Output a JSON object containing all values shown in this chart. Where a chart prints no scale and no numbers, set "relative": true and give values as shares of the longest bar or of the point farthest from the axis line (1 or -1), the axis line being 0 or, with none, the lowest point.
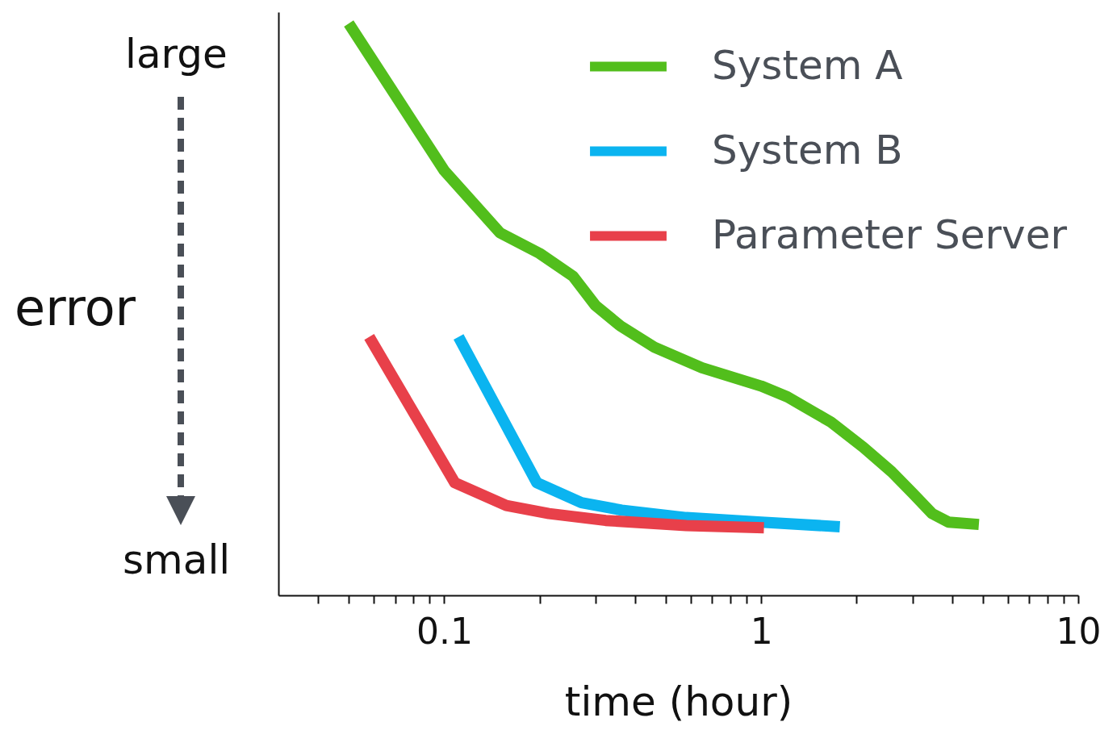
{
  "chart_data": {
    "type": "line",
    "relative": true,
    "ylabel": "error",
    "xlabel": "time (hour)",
    "annotations": [
      "large",
      "small"
    ],
    "log": "x",
    "grid": false,
    "legend": "top right",
    "line_style": "solid",
    "marker": "none",
    "xlim": [
      0.03,
      10
    ],
    "xticks": [
      {
        "value": 0.04,
        "label": null
      },
      {
        "value": 0.05,
        "label": null
      },
      {
        "value": 0.06,
        "label": null
      },
      {
        "value": 0.07,
        "label": null
      },
      {
        "value": 0.08,
        "label": null
      },
      {
        "value": 0.09,
        "label": null
      },
      0.1,
      {
        "value": 0.2,
        "label": null
      },
      {
        "value": 0.3,
        "label": null
      },
      {
        "value": 0.4,
        "label": null
      },
      {
        "value": 0.5,
        "label": null
      },
      {
        "value": 0.6,
        "label": null
      },
      {
        "value": 0.7,
        "label": null
      },
      {
        "value": 0.8,
        "label": null
      },
      {
        "value": 0.9,
        "label": null
      },
      1,
      {
        "value": 2,
        "label": null
      },
      {
        "value": 3,
        "label": null
      },
      {
        "value": 4,
        "label": null
      },
      {
        "value": 5,
        "label": null
      },
      {
        "value": 6,
        "label": null
      },
      {
        "value": 7,
        "label": null
      },
      {
        "value": 8,
        "label": null
      },
      {
        "value": 9,
        "label": null
      },
      10
    ],
    "series": [
      {
        "name": "System A",
        "color": "#52be1c",
        "x": [
          0.05,
          0.1,
          0.15,
          0.2,
          0.255,
          0.3,
          0.36,
          0.46,
          0.65,
          1,
          1.21,
          1.66,
          2.1,
          2.58,
          3,
          3.46,
          3.9,
          4.86
        ],
        "values": [
          1,
          0.743,
          0.634,
          0.598,
          0.558,
          0.507,
          0.471,
          0.434,
          0.398,
          0.366,
          0.347,
          0.303,
          0.259,
          0.216,
          0.179,
          0.143,
          0.128,
          0.124
        ]
      },
      {
        "name": "System B",
        "color": "#0bb4f0",
        "x": [
          0.111,
          0.196,
          0.271,
          0.363,
          0.58,
          1,
          1.77
        ],
        "values": [
          0.452,
          0.197,
          0.162,
          0.149,
          0.136,
          0.128,
          0.12
        ]
      },
      {
        "name": "Parameter Server",
        "color": "#e8404a",
        "x": [
          0.058,
          0.108,
          0.157,
          0.214,
          0.323,
          0.58,
          1.02
        ],
        "values": [
          0.452,
          0.197,
          0.157,
          0.143,
          0.131,
          0.122,
          0.118
        ]
      }
    ]
  }
}
